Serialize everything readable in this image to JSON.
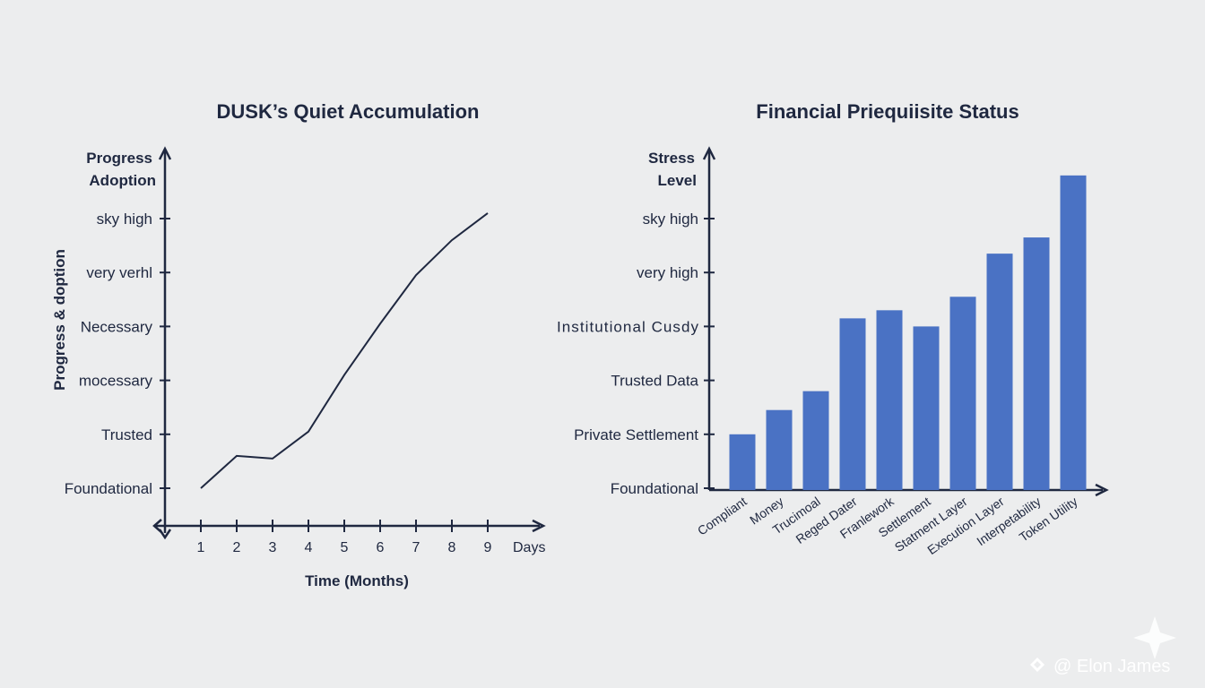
{
  "chart_data": [
    {
      "type": "line",
      "title": "DUSK’s Quiet Accumulation",
      "ylabel_top": [
        "Progress",
        "Adoption"
      ],
      "ylabel_side": "Progress & doption",
      "xlabel": "Time (Months)",
      "x_unit_label": "Days",
      "yticks": [
        "Foundational",
        "Trusted",
        "mocessary",
        "Necessary",
        "very verhl",
        "sky high"
      ],
      "x": [
        1,
        2,
        3,
        4,
        5,
        6,
        7,
        8,
        9
      ],
      "y": [
        0.0,
        0.6,
        0.55,
        1.05,
        2.1,
        3.05,
        3.95,
        4.6,
        5.1
      ],
      "ylim": [
        0,
        5
      ],
      "xlim": [
        0,
        10
      ],
      "line_color": "#1f2840"
    },
    {
      "type": "bar",
      "title": "Financial Priequiisite Status",
      "ylabel_top": [
        "Stress",
        "Level"
      ],
      "yticks": [
        "Foundational",
        "Private Settlement",
        "Trusted Data",
        "Institutional Cusdy",
        "very high",
        "sky high"
      ],
      "categories": [
        "Compliant",
        "Money",
        "Trucimoal",
        "Reged Dater",
        "Franlework",
        "Settlement",
        "Statment Layer",
        "Execution Layer",
        "Interpetability",
        "Token Utility"
      ],
      "values": [
        1.0,
        1.45,
        1.8,
        3.15,
        3.3,
        3.0,
        3.55,
        4.35,
        4.65,
        5.8
      ],
      "ylim": [
        0,
        6
      ],
      "bar_color": "#4a72c4"
    }
  ],
  "watermark": {
    "text": "@ Elon James",
    "icon": "sparkle-icon"
  }
}
